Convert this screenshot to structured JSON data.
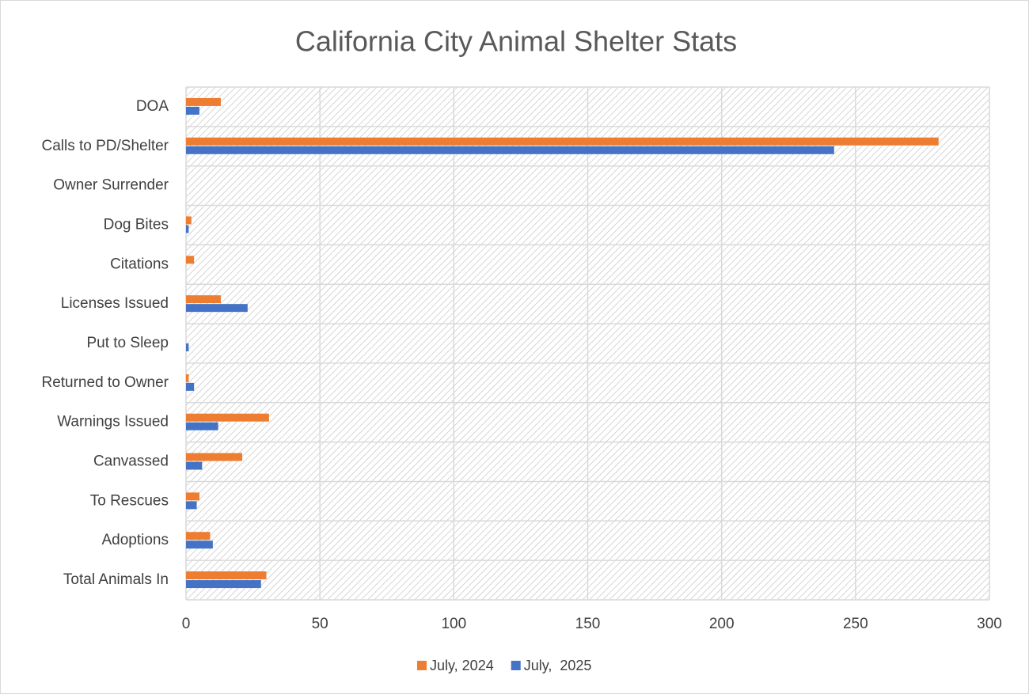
{
  "chart_data": {
    "type": "hbar",
    "title": "California City Animal Shelter Stats",
    "categories": [
      "DOA",
      "Calls to PD/Shelter",
      "Owner Surrender",
      "Dog Bites",
      "Citations",
      "Licenses Issued",
      "Put to Sleep",
      "Returned to Owner",
      "Warnings Issued",
      "Canvassed",
      "To Rescues",
      "Adoptions",
      "Total Animals In"
    ],
    "series": [
      {
        "name": "July, 2024",
        "color": "#ed7d31",
        "values": [
          13,
          281,
          0,
          2,
          3,
          13,
          0,
          1,
          31,
          21,
          5,
          9,
          30
        ]
      },
      {
        "name": "July,  2025",
        "color": "#4472c4",
        "values": [
          5,
          242,
          0,
          1,
          0,
          23,
          1,
          3,
          12,
          6,
          4,
          10,
          28
        ]
      }
    ],
    "xlim": [
      0,
      300
    ],
    "xticks": [
      0,
      50,
      100,
      150,
      200,
      250,
      300
    ],
    "grid": true,
    "legend": "bottom"
  }
}
